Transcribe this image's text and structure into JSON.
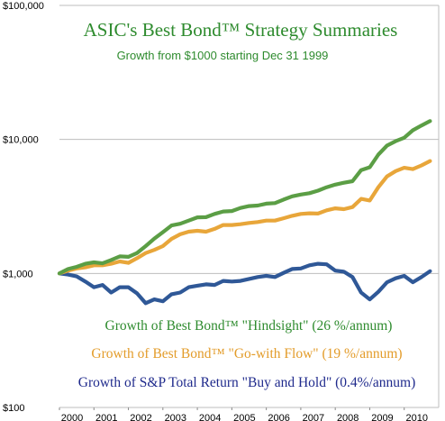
{
  "chart_data": {
    "type": "line",
    "title": "ASIC's Best Bond™  Strategy Summaries",
    "subtitle": "Growth from $1000 starting Dec 31 1999",
    "title_color": "#2e8b2e",
    "y_scale": "log",
    "ylim": [
      100,
      100000
    ],
    "y_ticks": [
      {
        "value": 100000,
        "label": "$100,000"
      },
      {
        "value": 10000,
        "label": "$10,000"
      },
      {
        "value": 1000,
        "label": "$1,000"
      },
      {
        "value": 100,
        "label": "$100"
      }
    ],
    "xlim": [
      2000,
      2011
    ],
    "x_ticks": [
      {
        "value": 2000,
        "label": "2000"
      },
      {
        "value": 2001,
        "label": "2001"
      },
      {
        "value": 2002,
        "label": "2002"
      },
      {
        "value": 2003,
        "label": "2003"
      },
      {
        "value": 2004,
        "label": "2004"
      },
      {
        "value": 2005,
        "label": "2005"
      },
      {
        "value": 2006,
        "label": "2006"
      },
      {
        "value": 2007,
        "label": "2007"
      },
      {
        "value": 2008,
        "label": "2008"
      },
      {
        "value": 2009,
        "label": "2009"
      },
      {
        "value": 2010,
        "label": "2010"
      }
    ],
    "grid": true,
    "x": [
      2000.0,
      2000.25,
      2000.5,
      2000.75,
      2001.0,
      2001.25,
      2001.5,
      2001.75,
      2002.0,
      2002.25,
      2002.5,
      2002.75,
      2003.0,
      2003.25,
      2003.5,
      2003.75,
      2004.0,
      2004.25,
      2004.5,
      2004.75,
      2005.0,
      2005.25,
      2005.5,
      2005.75,
      2006.0,
      2006.25,
      2006.5,
      2006.75,
      2007.0,
      2007.25,
      2007.5,
      2007.75,
      2008.0,
      2008.25,
      2008.5,
      2008.75,
      2009.0,
      2009.25,
      2009.5,
      2009.75,
      2010.0,
      2010.25,
      2010.5,
      2010.75
    ],
    "series": [
      {
        "name": "Growth of Best Bond™  \"Hindsight\" (26 %/annum)",
        "color": "#5b9e45",
        "values": [
          1000,
          1080,
          1120,
          1180,
          1210,
          1190,
          1260,
          1340,
          1330,
          1420,
          1600,
          1820,
          2030,
          2280,
          2350,
          2480,
          2620,
          2630,
          2780,
          2900,
          2920,
          3080,
          3180,
          3210,
          3320,
          3350,
          3560,
          3760,
          3880,
          3970,
          4150,
          4400,
          4600,
          4750,
          4880,
          5900,
          6200,
          7700,
          9000,
          9700,
          10300,
          11700,
          12700,
          13700
        ]
      },
      {
        "name": "Growth of Best Bond™  \"Go-with Flow\" (19 %/annum)",
        "color": "#e8a63a",
        "values": [
          1000,
          1050,
          1090,
          1110,
          1150,
          1150,
          1180,
          1230,
          1200,
          1300,
          1420,
          1500,
          1600,
          1810,
          1960,
          2050,
          2080,
          2050,
          2150,
          2300,
          2300,
          2330,
          2380,
          2420,
          2480,
          2480,
          2580,
          2690,
          2780,
          2810,
          2800,
          2960,
          3060,
          3020,
          3130,
          3600,
          3500,
          4400,
          5300,
          5800,
          6150,
          6000,
          6400,
          6900
        ]
      },
      {
        "name": "Growth of S&P Total Return \"Buy and Hold\" (0.4%/annum)",
        "color": "#2f5897",
        "values": [
          1000,
          980,
          950,
          870,
          790,
          820,
          720,
          790,
          790,
          710,
          600,
          640,
          620,
          700,
          720,
          790,
          810,
          830,
          820,
          880,
          870,
          880,
          910,
          940,
          960,
          940,
          1010,
          1080,
          1090,
          1150,
          1180,
          1170,
          1050,
          1030,
          940,
          720,
          640,
          730,
          860,
          920,
          960,
          860,
          940,
          1040
        ]
      }
    ]
  }
}
